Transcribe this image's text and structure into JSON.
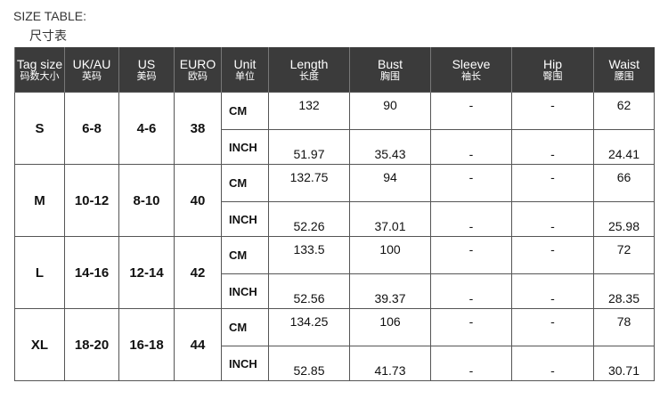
{
  "title": "SIZE TABLE:",
  "title_cn": "尺寸表",
  "headers": [
    {
      "en": "Tag size",
      "cn": "码数大小"
    },
    {
      "en": "UK/AU",
      "cn": "英码"
    },
    {
      "en": "US",
      "cn": "美码"
    },
    {
      "en": "EURO",
      "cn": "欧码"
    },
    {
      "en": "Unit",
      "cn": "单位"
    },
    {
      "en": "Length",
      "cn": "长度"
    },
    {
      "en": "Bust",
      "cn": "胸围"
    },
    {
      "en": "Sleeve",
      "cn": "袖长"
    },
    {
      "en": "Hip",
      "cn": "臀围"
    },
    {
      "en": "Waist",
      "cn": "腰围"
    }
  ],
  "rows": [
    {
      "tag": "S",
      "uk": "6-8",
      "us": "4-6",
      "euro": "38",
      "cm": [
        "CM",
        "132",
        "90",
        "-",
        "-",
        "62"
      ],
      "inch": [
        "INCH",
        "51.97",
        "35.43",
        "-",
        "-",
        "24.41"
      ]
    },
    {
      "tag": "M",
      "uk": "10-12",
      "us": "8-10",
      "euro": "40",
      "cm": [
        "CM",
        "132.75",
        "94",
        "-",
        "-",
        "66"
      ],
      "inch": [
        "INCH",
        "52.26",
        "37.01",
        "-",
        "-",
        "25.98"
      ]
    },
    {
      "tag": "L",
      "uk": "14-16",
      "us": "12-14",
      "euro": "42",
      "cm": [
        "CM",
        "133.5",
        "100",
        "-",
        "-",
        "72"
      ],
      "inch": [
        "INCH",
        "52.56",
        "39.37",
        "-",
        "-",
        "28.35"
      ]
    },
    {
      "tag": "XL",
      "uk": "18-20",
      "us": "16-18",
      "euro": "44",
      "cm": [
        "CM",
        "134.25",
        "106",
        "-",
        "-",
        "78"
      ],
      "inch": [
        "INCH",
        "52.85",
        "41.73",
        "-",
        "-",
        "30.71"
      ]
    }
  ]
}
